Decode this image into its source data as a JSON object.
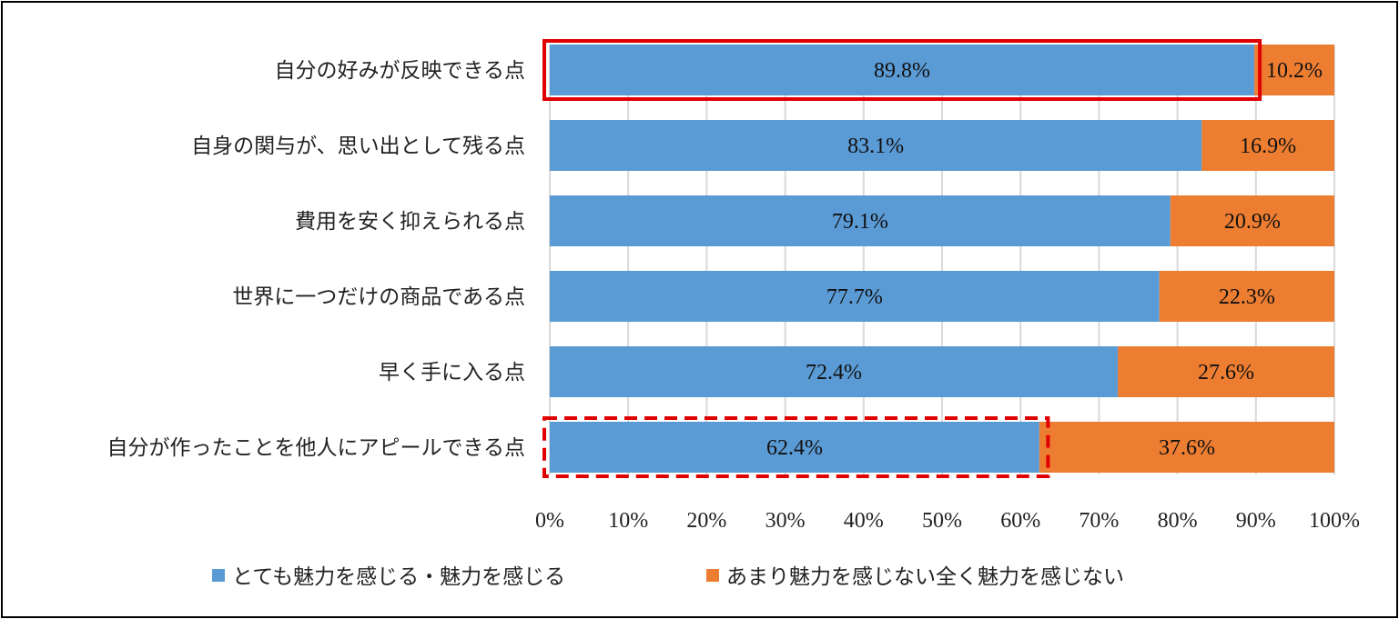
{
  "chart_data": {
    "type": "bar",
    "orientation": "horizontal",
    "stacked": true,
    "categories": [
      "自分の好みが反映できる点",
      "自身の関与が、思い出として残る点",
      "費用を安く抑えられる点",
      "世界に一つだけの商品である点",
      "早く手に入る点",
      "自分が作ったことを他人にアピールできる点"
    ],
    "series": [
      {
        "name": "とても魅力を感じる・魅力を感じる",
        "color": "#5B9BD5",
        "values": [
          89.8,
          83.1,
          79.1,
          77.7,
          72.4,
          62.4
        ],
        "labels": [
          "89.8%",
          "83.1%",
          "79.1%",
          "77.7%",
          "72.4%",
          "62.4%"
        ]
      },
      {
        "name": "あまり魅力を感じない全く魅力を感じない",
        "color": "#ED7D31",
        "values": [
          10.2,
          16.9,
          20.9,
          22.3,
          27.6,
          37.6
        ],
        "labels": [
          "10.2%",
          "16.9%",
          "20.9%",
          "22.3%",
          "27.6%",
          "37.6%"
        ]
      }
    ],
    "xlim": [
      0,
      100
    ],
    "xticks": [
      "0%",
      "10%",
      "20%",
      "30%",
      "40%",
      "50%",
      "60%",
      "70%",
      "80%",
      "90%",
      "100%"
    ],
    "grid": "vertical",
    "legend_position": "bottom",
    "highlights": [
      {
        "category_index": 0,
        "style": "solid",
        "color": "#E00000",
        "extent": 90.5
      },
      {
        "category_index": 5,
        "style": "dashed",
        "color": "#E00000",
        "extent": 63.5
      }
    ]
  }
}
